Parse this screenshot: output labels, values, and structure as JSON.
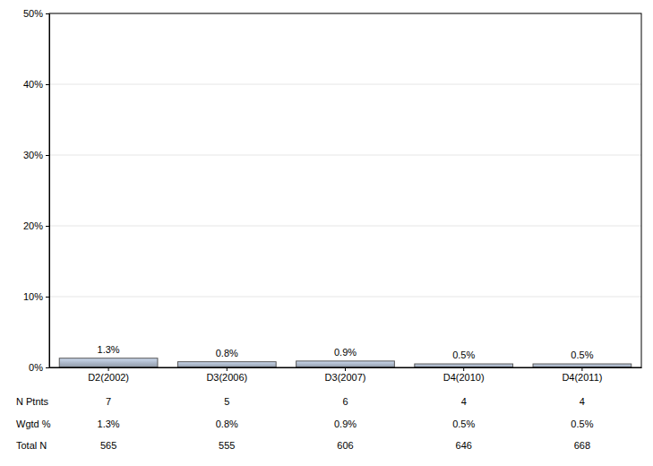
{
  "chart_data": {
    "type": "bar",
    "categories": [
      "D2(2002)",
      "D3(2006)",
      "D3(2007)",
      "D4(2010)",
      "D4(2011)"
    ],
    "values": [
      1.3,
      0.8,
      0.9,
      0.5,
      0.5
    ],
    "value_labels": [
      "1.3%",
      "0.8%",
      "0.9%",
      "0.5%",
      "0.5%"
    ],
    "data_labels": true,
    "color": "#a4afc0",
    "ylim": [
      0,
      50
    ],
    "yticks": [
      {
        "value": 0,
        "label": "0%"
      },
      {
        "value": 10,
        "label": "10%"
      },
      {
        "value": 20,
        "label": "20%"
      },
      {
        "value": 30,
        "label": "30%"
      },
      {
        "value": 40,
        "label": "40%"
      },
      {
        "value": 50,
        "label": "50%"
      }
    ],
    "grid": true,
    "table": [
      {
        "label": "N Ptnts",
        "values": [
          7,
          5,
          6,
          4,
          4
        ]
      },
      {
        "label": "Wgtd %",
        "values": [
          1.3,
          0.8,
          0.9,
          0.5,
          0.5
        ],
        "value_labels": [
          "1.3%",
          "0.8%",
          "0.9%",
          "0.5%",
          "0.5%"
        ]
      },
      {
        "label": "Total N",
        "values": [
          565,
          555,
          606,
          646,
          668
        ]
      }
    ]
  }
}
